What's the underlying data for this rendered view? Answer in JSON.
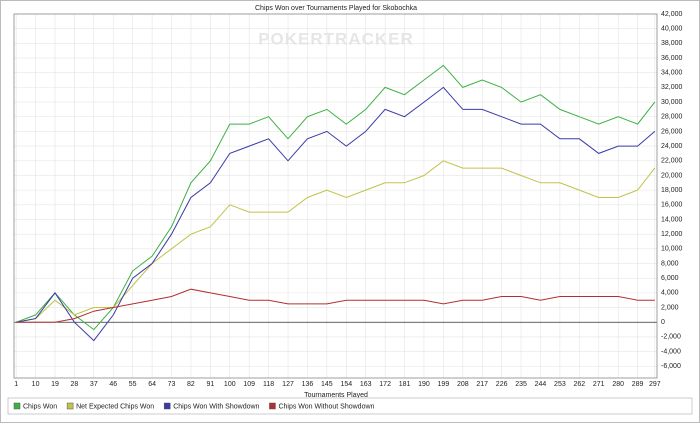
{
  "chart_data": {
    "type": "line",
    "title": "Chips Won over Tournaments Played for Skobochka",
    "watermark": "POKERTRACKER",
    "x_label": "Tournaments Played",
    "x": [
      1,
      10,
      19,
      28,
      37,
      46,
      55,
      64,
      73,
      82,
      91,
      100,
      109,
      118,
      127,
      136,
      145,
      154,
      163,
      172,
      181,
      190,
      199,
      208,
      217,
      226,
      235,
      244,
      253,
      262,
      271,
      280,
      289,
      297
    ],
    "xlim": [
      0,
      298
    ],
    "xticks": [
      1,
      10,
      19,
      28,
      37,
      46,
      55,
      64,
      73,
      82,
      91,
      100,
      109,
      118,
      127,
      136,
      145,
      154,
      163,
      172,
      181,
      190,
      199,
      208,
      217,
      226,
      235,
      244,
      253,
      262,
      271,
      280,
      289,
      297
    ],
    "ylim": [
      -7600,
      42000
    ],
    "yticks": [
      {
        "value": -6000,
        "label": "-6,000"
      },
      {
        "value": -4000,
        "label": "-4,000"
      },
      {
        "value": -2000,
        "label": "-2,000"
      },
      0,
      {
        "value": 2000,
        "label": "2,000"
      },
      {
        "value": 4000,
        "label": "4,000"
      },
      {
        "value": 6000,
        "label": "6,000"
      },
      {
        "value": 8000,
        "label": "8,000"
      },
      {
        "value": 10000,
        "label": "10,000"
      },
      {
        "value": 12000,
        "label": "12,000"
      },
      {
        "value": 14000,
        "label": "14,000"
      },
      {
        "value": 16000,
        "label": "16,000"
      },
      {
        "value": 18000,
        "label": "18,000"
      },
      {
        "value": 20000,
        "label": "20,000"
      },
      {
        "value": 22000,
        "label": "22,000"
      },
      {
        "value": 24000,
        "label": "24,000"
      },
      {
        "value": 26000,
        "label": "26,000"
      },
      {
        "value": 28000,
        "label": "28,000"
      },
      {
        "value": 30000,
        "label": "30,000"
      },
      {
        "value": 32000,
        "label": "32,000"
      },
      {
        "value": 34000,
        "label": "34,000"
      },
      {
        "value": 36000,
        "label": "36,000"
      },
      {
        "value": 38000,
        "label": "38,000"
      },
      {
        "value": 40000,
        "label": "40,000"
      },
      {
        "value": 42000,
        "label": "42,000"
      }
    ],
    "grid": true,
    "legend": "bottom",
    "series": [
      {
        "name": "Chips Won",
        "color": "#3cb043",
        "values": [
          0,
          1000,
          4000,
          1000,
          -1000,
          2000,
          7000,
          9000,
          13000,
          19000,
          22000,
          27000,
          27000,
          28000,
          25000,
          28000,
          29000,
          27000,
          29000,
          32000,
          31000,
          33000,
          35000,
          32000,
          33000,
          32000,
          30000,
          31000,
          29000,
          28000,
          27000,
          28000,
          27000,
          30000
        ]
      },
      {
        "name": "Net Expected Chips Won",
        "color": "#c2c24a",
        "values": [
          0,
          500,
          3000,
          1000,
          2000,
          2000,
          5000,
          8000,
          10000,
          12000,
          13000,
          16000,
          15000,
          15000,
          15000,
          17000,
          18000,
          17000,
          18000,
          19000,
          19000,
          20000,
          22000,
          21000,
          21000,
          21000,
          20000,
          19000,
          19000,
          18000,
          17000,
          17000,
          18000,
          21000
        ]
      },
      {
        "name": "Chips Won With Showdown",
        "color": "#3a3aa8",
        "values": [
          0,
          500,
          4000,
          0,
          -2500,
          1000,
          6000,
          8000,
          12000,
          17000,
          19000,
          23000,
          24000,
          25000,
          22000,
          25000,
          26000,
          24000,
          26000,
          29000,
          28000,
          30000,
          32000,
          29000,
          29000,
          28000,
          27000,
          27000,
          25000,
          25000,
          23000,
          24000,
          24000,
          26000
        ]
      },
      {
        "name": "Chips Won Without Showdown",
        "color": "#b03030",
        "values": [
          0,
          0,
          0,
          500,
          1500,
          2000,
          2500,
          3000,
          3500,
          4500,
          4000,
          3500,
          3000,
          3000,
          2500,
          2500,
          2500,
          3000,
          3000,
          3000,
          3000,
          3000,
          2500,
          3000,
          3000,
          3500,
          3500,
          3000,
          3500,
          3500,
          3500,
          3500,
          3000,
          3000
        ]
      }
    ]
  }
}
